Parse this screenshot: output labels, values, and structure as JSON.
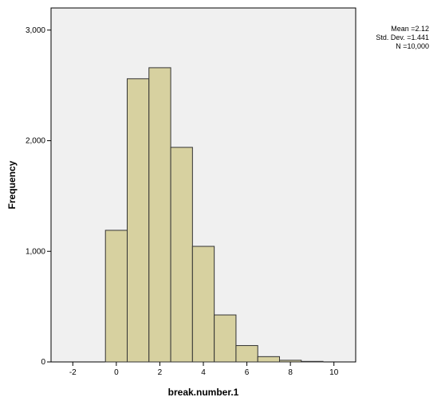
{
  "chart_data": {
    "type": "bar",
    "xlabel": "break.number.1",
    "ylabel": "Frequency",
    "xlim": [
      -3,
      11
    ],
    "ylim": [
      0,
      3200
    ],
    "x_ticks": [
      -2,
      0,
      2,
      4,
      6,
      8,
      10
    ],
    "y_ticks": [
      0,
      1000,
      2000,
      3000
    ],
    "x_tick_labels": [
      "-2",
      "0",
      "2",
      "4",
      "6",
      "8",
      "10"
    ],
    "y_tick_labels": [
      "0",
      "1,000",
      "2,000",
      "3,000"
    ],
    "bin_width": 1,
    "bins": [
      {
        "from": -0.5,
        "to": 0.5,
        "count": 1190
      },
      {
        "from": 0.5,
        "to": 1.5,
        "count": 2560
      },
      {
        "from": 1.5,
        "to": 2.5,
        "count": 2660
      },
      {
        "from": 2.5,
        "to": 3.5,
        "count": 1940
      },
      {
        "from": 3.5,
        "to": 4.5,
        "count": 1045
      },
      {
        "from": 4.5,
        "to": 5.5,
        "count": 425
      },
      {
        "from": 5.5,
        "to": 6.5,
        "count": 148
      },
      {
        "from": 6.5,
        "to": 7.5,
        "count": 48
      },
      {
        "from": 7.5,
        "to": 8.5,
        "count": 15
      },
      {
        "from": 8.5,
        "to": 9.5,
        "count": 5
      }
    ],
    "colors": {
      "bar_fill": "#d7d1a0",
      "bar_stroke": "#333333",
      "plot_background": "#f0f0f0",
      "plot_border": "#000000"
    },
    "grid": false,
    "legend": "none"
  },
  "stats": {
    "mean": "Mean =2.12",
    "std_dev": "Std. Dev. =1.441",
    "n": "N =10,000"
  }
}
